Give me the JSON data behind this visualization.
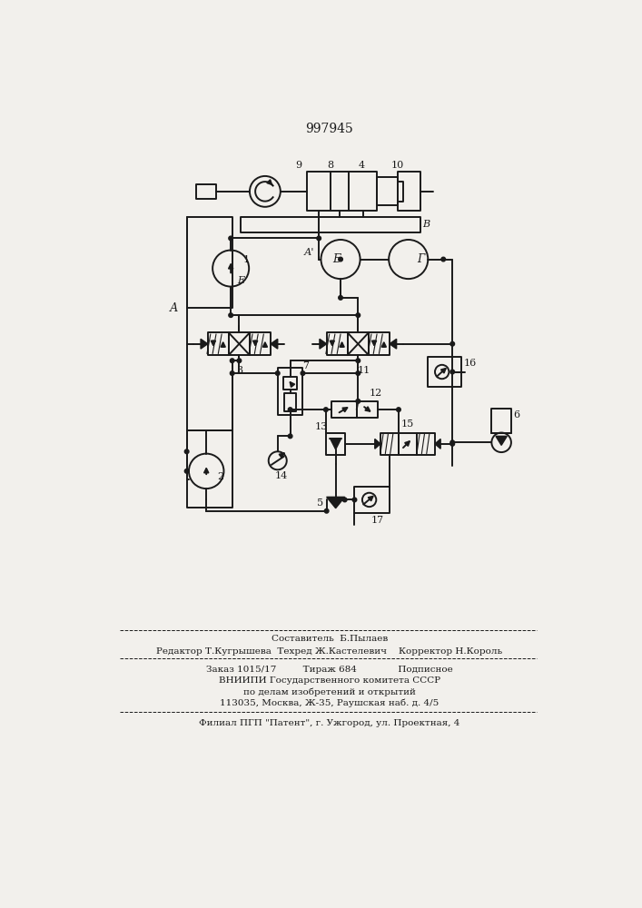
{
  "patent_number": "997945",
  "bg": "#f2f0ec",
  "lc": "#1a1a1a",
  "footer": [
    "Составитель  Б.Пылаев",
    "Редактор Т.Кугрышева  Техред Ж.Кастелевич    Корректор Н.Король",
    "Заказ 1015/17         Тираж 684              Подписное",
    "ВНИИПИ Государственного комитета СССР",
    "по делам изобретений и открытий",
    "113035, Москва, Ж-35, Раушская наб. д. 4/5",
    "Филиал ПГП \"Патент\", г. Ужгород, ул. Проектная, 4"
  ]
}
